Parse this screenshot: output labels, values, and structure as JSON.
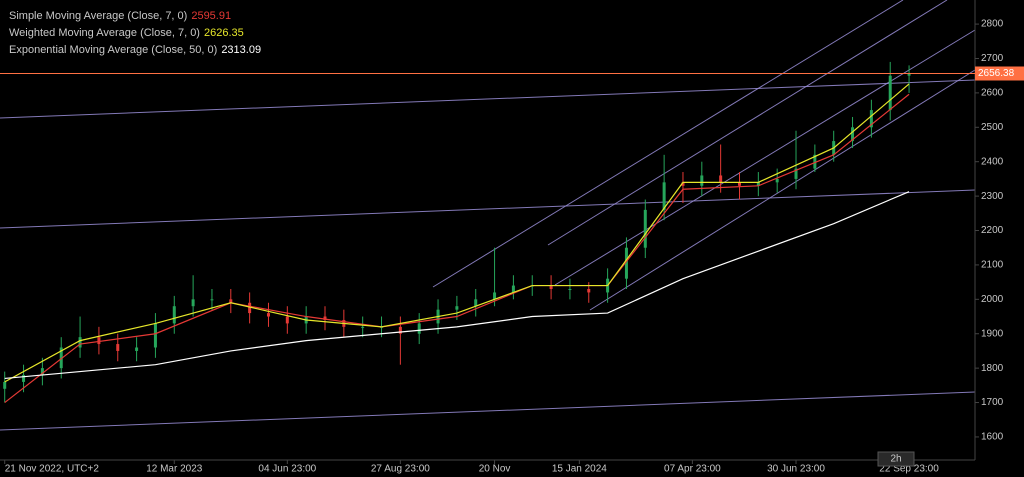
{
  "chart_data": {
    "type": "candlestick",
    "interval": "2h",
    "xlim": [
      -0.5,
      103
    ],
    "ylim": [
      1533,
      2870
    ],
    "yticks": [
      1600,
      1700,
      1800,
      1900,
      2000,
      2100,
      2200,
      2300,
      2400,
      2500,
      2600,
      2700,
      2800
    ],
    "xticks": [
      {
        "value": 0,
        "label": "21 Nov 2022, UTC+2"
      },
      {
        "value": 18,
        "label": "12 Mar 2023"
      },
      {
        "value": 30,
        "label": "04 Jun 23:00"
      },
      {
        "value": 42,
        "label": "27 Aug 23:00"
      },
      {
        "value": 52,
        "label": "20 Nov"
      },
      {
        "value": 61,
        "label": "15 Jan 2024"
      },
      {
        "value": 73,
        "label": "07 Apr 23:00"
      },
      {
        "value": 84,
        "label": "30 Jun 23:00"
      },
      {
        "value": 96,
        "label": "22 Sep 23:00"
      }
    ],
    "up_color": "#26a65b",
    "down_color": "#e53935",
    "candles": {
      "x": [
        0,
        2,
        4,
        6,
        8,
        10,
        12,
        14,
        16,
        18,
        20,
        22,
        24,
        26,
        28,
        30,
        32,
        34,
        36,
        38,
        40,
        42,
        44,
        46,
        48,
        50,
        52,
        54,
        56,
        58,
        60,
        62,
        64,
        66,
        68,
        70,
        72,
        74,
        76,
        78,
        80,
        82,
        84,
        86,
        88,
        90,
        92,
        94,
        96
      ],
      "open": [
        1740,
        1760,
        1780,
        1800,
        1860,
        1890,
        1870,
        1850,
        1860,
        1930,
        1980,
        2000,
        2000,
        1990,
        1960,
        1950,
        1930,
        1950,
        1940,
        1920,
        1920,
        1920,
        1900,
        1930,
        1970,
        1980,
        2000,
        2020,
        2040,
        2040,
        2030,
        2030,
        2020,
        2060,
        2150,
        2260,
        2340,
        2330,
        2360,
        2340,
        2330,
        2340,
        2350,
        2380,
        2420,
        2460,
        2500,
        2550,
        2650
      ],
      "high": [
        1790,
        1810,
        1830,
        1890,
        1950,
        1920,
        1900,
        1890,
        1960,
        2010,
        2070,
        2030,
        2030,
        2020,
        1990,
        1980,
        1980,
        1980,
        1970,
        1950,
        1950,
        1950,
        1960,
        2000,
        2010,
        2030,
        2150,
        2070,
        2070,
        2070,
        2060,
        2050,
        2090,
        2180,
        2290,
        2420,
        2370,
        2400,
        2450,
        2370,
        2370,
        2380,
        2490,
        2450,
        2490,
        2530,
        2580,
        2690,
        2680
      ],
      "low": [
        1700,
        1730,
        1750,
        1770,
        1830,
        1840,
        1820,
        1820,
        1830,
        1900,
        1950,
        1970,
        1960,
        1930,
        1920,
        1900,
        1900,
        1910,
        1890,
        1890,
        1890,
        1810,
        1870,
        1900,
        1940,
        1950,
        1980,
        2000,
        2010,
        2000,
        2000,
        1990,
        1990,
        2030,
        2120,
        2230,
        2280,
        2300,
        2310,
        2290,
        2300,
        2310,
        2320,
        2370,
        2400,
        2440,
        2470,
        2520,
        2600
      ],
      "close": [
        1760,
        1780,
        1800,
        1860,
        1890,
        1870,
        1850,
        1860,
        1930,
        1980,
        2000,
        2000,
        1990,
        1960,
        1950,
        1930,
        1950,
        1940,
        1920,
        1920,
        1920,
        1900,
        1930,
        1970,
        1980,
        2000,
        2020,
        2040,
        2040,
        2030,
        2030,
        2020,
        2060,
        2150,
        2260,
        2340,
        2330,
        2360,
        2340,
        2330,
        2340,
        2350,
        2380,
        2420,
        2460,
        2500,
        2550,
        2650,
        2656
      ]
    },
    "series": [
      {
        "name": "Simple Moving Average (Close, 7, 0)",
        "last": 2595.91,
        "color": "#e53935",
        "x": [
          0,
          8,
          16,
          24,
          32,
          40,
          48,
          56,
          64,
          72,
          80,
          88,
          96
        ],
        "values": [
          1700,
          1870,
          1900,
          1990,
          1950,
          1920,
          1950,
          2040,
          2040,
          2320,
          2330,
          2420,
          2596
        ]
      },
      {
        "name": "Weighted Moving Average (Close, 7, 0)",
        "last": 2626.35,
        "color": "#e6e62a",
        "x": [
          0,
          8,
          16,
          24,
          32,
          40,
          48,
          56,
          64,
          72,
          80,
          88,
          96
        ],
        "values": [
          1760,
          1880,
          1930,
          1990,
          1940,
          1920,
          1960,
          2040,
          2040,
          2340,
          2340,
          2440,
          2626
        ]
      },
      {
        "name": "Exponential Moving Average (Close, 50, 0)",
        "last": 2313.09,
        "color": "#ffffff",
        "x": [
          0,
          8,
          16,
          24,
          32,
          40,
          48,
          56,
          64,
          72,
          80,
          88,
          96
        ],
        "values": [
          1770,
          1790,
          1810,
          1850,
          1880,
          1900,
          1920,
          1950,
          1960,
          2060,
          2140,
          2220,
          2313
        ]
      }
    ],
    "price_line": {
      "value": 2656.38,
      "label": "2656.38",
      "color": "#ff7043"
    }
  }
}
